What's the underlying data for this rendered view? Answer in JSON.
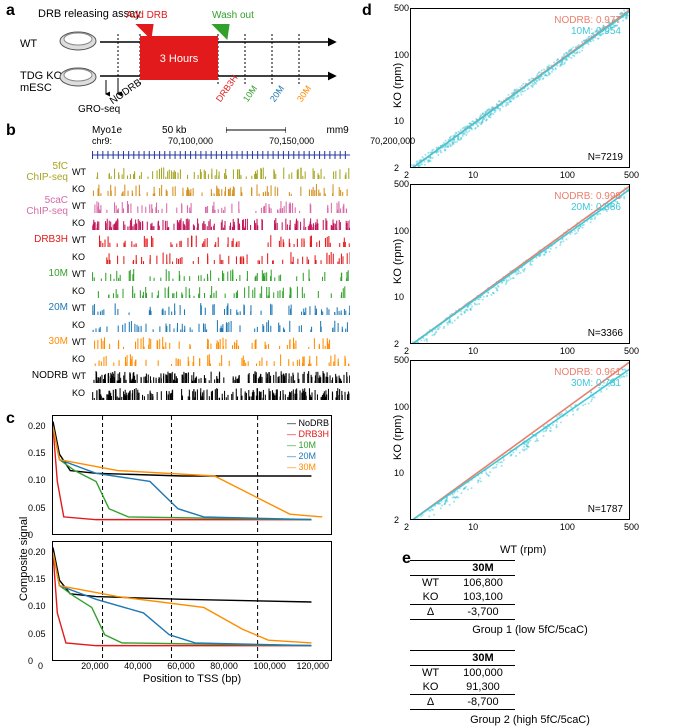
{
  "panel_labels": {
    "a": "a",
    "b": "b",
    "c": "c",
    "d": "d",
    "e": "e"
  },
  "a": {
    "title": "DRB releasing assay",
    "rows": [
      "WT",
      "TDG KO\nmESC"
    ],
    "add_drb": "Add DRB",
    "washout": "Wash out",
    "duration": "3 Hours",
    "groseq": "GRO-seq",
    "nodrb": "NODRB",
    "timepoints": [
      {
        "label": "DRB3H",
        "color": "#e31a1c"
      },
      {
        "label": "10M",
        "color": "#33a02c"
      },
      {
        "label": "20M",
        "color": "#1f78b4"
      },
      {
        "label": "30M",
        "color": "#ff8c00"
      }
    ],
    "red_box_color": "#e31a1c",
    "arrow_red": "#e31a1c",
    "arrow_green": "#33a02c"
  },
  "b": {
    "gene": "Myo1e",
    "scale": "50 kb",
    "assembly": "mm9",
    "chrom": "chr9:",
    "coords": [
      "70,100,000",
      "70,150,000",
      "70,200,000"
    ],
    "track_groups": [
      {
        "name": "5fC\nChIP-seq",
        "color_wt": "#a6a623",
        "color_ko": "#d48f1d",
        "rows": [
          "WT",
          "KO"
        ]
      },
      {
        "name": "5caC\nChIP-seq",
        "color_wt": "#d66aa6",
        "color_ko": "#c2185b",
        "rows": [
          "WT",
          "KO"
        ]
      },
      {
        "name": "DRB3H",
        "color_wt": "#e31a1c",
        "color_ko": "#e31a1c",
        "rows": [
          "WT",
          "KO"
        ]
      },
      {
        "name": "10M",
        "color_wt": "#33a02c",
        "color_ko": "#33a02c",
        "rows": [
          "WT",
          "KO"
        ]
      },
      {
        "name": "20M",
        "color_wt": "#1f78b4",
        "color_ko": "#1f78b4",
        "rows": [
          "WT",
          "KO"
        ]
      },
      {
        "name": "30M",
        "color_wt": "#ff8c00",
        "color_ko": "#ff8c00",
        "rows": [
          "WT",
          "KO"
        ]
      },
      {
        "name": "NODRB",
        "color_wt": "#000000",
        "color_ko": "#000000",
        "rows": [
          "WT",
          "KO"
        ]
      }
    ],
    "gene_color": "#2b3aa0"
  },
  "c": {
    "ylabel": "Composite signal",
    "xlabel": "Position to TSS   (bp)",
    "xlim": [
      0,
      130000
    ],
    "xticks": [
      0,
      20000,
      40000,
      60000,
      80000,
      100000,
      120000
    ],
    "xtick_labels": [
      "0",
      "20,000",
      "40,000",
      "60,000",
      "80,000",
      "100,000",
      "120,000"
    ],
    "ylim": [
      0,
      0.22
    ],
    "yticks": [
      0,
      0.05,
      0.1,
      0.15,
      0.2
    ],
    "ytick_labels": [
      "0",
      "0.05",
      "0.10",
      "0.15",
      "0.20"
    ],
    "legend": [
      {
        "label": "NoDRB",
        "color": "#000000"
      },
      {
        "label": "DRB3H",
        "color": "#e31a1c"
      },
      {
        "label": "10M",
        "color": "#33a02c"
      },
      {
        "label": "20M",
        "color": "#1f78b4"
      },
      {
        "label": "30M",
        "color": "#ff8c00"
      }
    ],
    "dash_x_positions": [
      23000,
      55000,
      95000
    ],
    "series_top": {
      "NoDRB": {
        "color": "#000000",
        "points": [
          [
            0,
            0.21
          ],
          [
            3000,
            0.15
          ],
          [
            8000,
            0.12
          ],
          [
            20000,
            0.115
          ],
          [
            60000,
            0.11
          ],
          [
            120000,
            0.11
          ]
        ]
      },
      "DRB3H": {
        "color": "#e31a1c",
        "points": [
          [
            0,
            0.2
          ],
          [
            2000,
            0.1
          ],
          [
            5000,
            0.035
          ],
          [
            20000,
            0.03
          ],
          [
            120000,
            0.03
          ]
        ]
      },
      "10M": {
        "color": "#33a02c",
        "points": [
          [
            0,
            0.2
          ],
          [
            3000,
            0.14
          ],
          [
            10000,
            0.12
          ],
          [
            20000,
            0.1
          ],
          [
            26000,
            0.05
          ],
          [
            35000,
            0.035
          ],
          [
            120000,
            0.03
          ]
        ]
      },
      "20M": {
        "color": "#1f78b4",
        "points": [
          [
            0,
            0.2
          ],
          [
            3000,
            0.14
          ],
          [
            20000,
            0.115
          ],
          [
            45000,
            0.1
          ],
          [
            58000,
            0.05
          ],
          [
            70000,
            0.035
          ],
          [
            120000,
            0.03
          ]
        ]
      },
      "30M": {
        "color": "#ff8c00",
        "points": [
          [
            0,
            0.2
          ],
          [
            3000,
            0.14
          ],
          [
            30000,
            0.12
          ],
          [
            75000,
            0.11
          ],
          [
            95000,
            0.07
          ],
          [
            110000,
            0.04
          ],
          [
            125000,
            0.035
          ]
        ]
      }
    },
    "series_bottom": {
      "NoDRB": {
        "color": "#000000",
        "points": [
          [
            0,
            0.21
          ],
          [
            3000,
            0.15
          ],
          [
            8000,
            0.125
          ],
          [
            20000,
            0.12
          ],
          [
            60000,
            0.115
          ],
          [
            120000,
            0.11
          ]
        ]
      },
      "DRB3H": {
        "color": "#e31a1c",
        "points": [
          [
            0,
            0.2
          ],
          [
            2000,
            0.09
          ],
          [
            6000,
            0.035
          ],
          [
            20000,
            0.03
          ],
          [
            120000,
            0.03
          ]
        ]
      },
      "10M": {
        "color": "#33a02c",
        "points": [
          [
            0,
            0.2
          ],
          [
            3000,
            0.14
          ],
          [
            10000,
            0.12
          ],
          [
            18000,
            0.1
          ],
          [
            24000,
            0.05
          ],
          [
            32000,
            0.035
          ],
          [
            120000,
            0.03
          ]
        ]
      },
      "20M": {
        "color": "#1f78b4",
        "points": [
          [
            0,
            0.2
          ],
          [
            3000,
            0.14
          ],
          [
            20000,
            0.115
          ],
          [
            42000,
            0.09
          ],
          [
            54000,
            0.05
          ],
          [
            66000,
            0.035
          ],
          [
            120000,
            0.03
          ]
        ]
      },
      "30M": {
        "color": "#ff8c00",
        "points": [
          [
            0,
            0.2
          ],
          [
            3000,
            0.14
          ],
          [
            30000,
            0.12
          ],
          [
            70000,
            0.1
          ],
          [
            88000,
            0.06
          ],
          [
            100000,
            0.04
          ],
          [
            120000,
            0.035
          ]
        ]
      }
    }
  },
  "d": {
    "xlabel": "WT (rpm)",
    "ylabel": "KO (rpm)",
    "axis_ticks": [
      2,
      10,
      100,
      500
    ],
    "axis_tick_labels": [
      "2",
      "10",
      "100",
      "500"
    ],
    "point_color": "#40c8d8",
    "line_45_color": "#e9806e",
    "fit_line_color": "#40c8d8",
    "fit_title_color_nodrb": "#e9806e",
    "plots": [
      {
        "nodrb_slope_label": "NODRB: 0.977",
        "tp_label": "10M: 0.954",
        "N": "N=7219",
        "fit_slope": 0.954,
        "n_points": 600
      },
      {
        "nodrb_slope_label": "NODRB: 0.998",
        "tp_label": "20M: 0.886",
        "N": "N=3366",
        "fit_slope": 0.886,
        "n_points": 350
      },
      {
        "nodrb_slope_label": "NODRB: 0.961",
        "tp_label": "30M: 0.781",
        "N": "N=1787",
        "fit_slope": 0.781,
        "n_points": 220
      }
    ]
  },
  "e": {
    "header": "30M",
    "groups": [
      {
        "caption": "Group 1 (low 5fC/5caC)",
        "rows": [
          [
            "WT",
            "106,800"
          ],
          [
            "KO",
            "103,100"
          ],
          [
            "Δ",
            "-3,700"
          ]
        ]
      },
      {
        "caption": "Group 2 (high 5fC/5caC)",
        "rows": [
          [
            "WT",
            "100,000"
          ],
          [
            "KO",
            "91,300"
          ],
          [
            "Δ",
            "-8,700"
          ]
        ]
      }
    ]
  }
}
